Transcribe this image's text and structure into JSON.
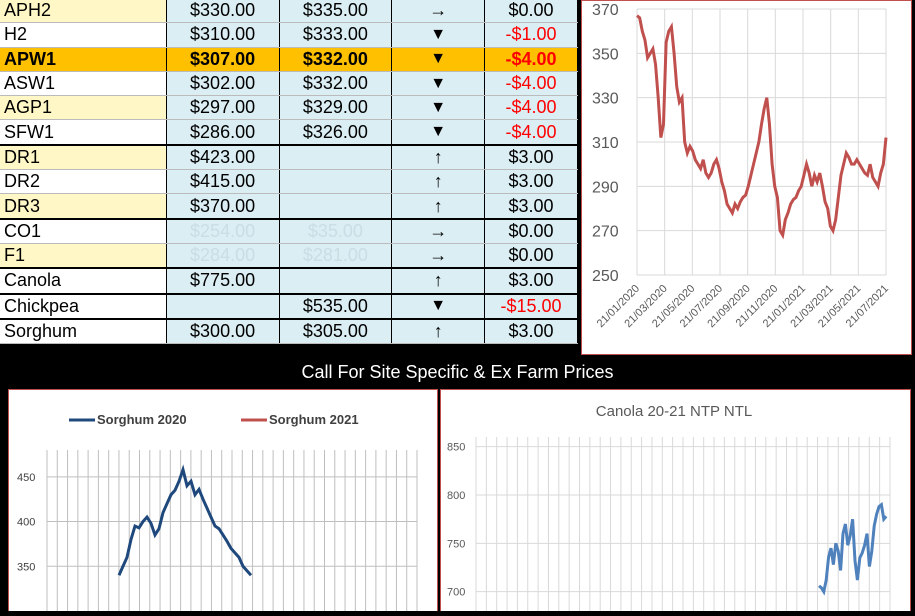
{
  "table": {
    "rows": [
      {
        "name": "APH2",
        "p1": "$330.00",
        "p2": "$335.00",
        "arrow": "→",
        "chg": "$0.00",
        "neg": false,
        "stripe": "even"
      },
      {
        "name": "H2",
        "p1": "$310.00",
        "p2": "$333.00",
        "arrow": "▼",
        "chg": "-$1.00",
        "neg": true,
        "stripe": "odd"
      },
      {
        "name": "APW1",
        "p1": "$307.00",
        "p2": "$332.00",
        "arrow": "▼",
        "chg": "-$4.00",
        "neg": true,
        "stripe": "hl"
      },
      {
        "name": "ASW1",
        "p1": "$302.00",
        "p2": "$332.00",
        "arrow": "▼",
        "chg": "-$4.00",
        "neg": true,
        "stripe": "odd"
      },
      {
        "name": "AGP1",
        "p1": "$297.00",
        "p2": "$329.00",
        "arrow": "▼",
        "chg": "-$4.00",
        "neg": true,
        "stripe": "even"
      },
      {
        "name": "SFW1",
        "p1": "$286.00",
        "p2": "$326.00",
        "arrow": "▼",
        "chg": "-$4.00",
        "neg": true,
        "stripe": "odd"
      },
      {
        "name": "DR1",
        "p1": "$423.00",
        "p2": "",
        "arrow": "↑",
        "chg": "$3.00",
        "neg": false,
        "stripe": "even"
      },
      {
        "name": "DR2",
        "p1": "$415.00",
        "p2": "",
        "arrow": "↑",
        "chg": "$3.00",
        "neg": false,
        "stripe": "odd"
      },
      {
        "name": "DR3",
        "p1": "$370.00",
        "p2": "",
        "arrow": "↑",
        "chg": "$3.00",
        "neg": false,
        "stripe": "even"
      },
      {
        "name": "CO1",
        "p1": "$254.00",
        "p2": "$35.00",
        "arrow": "→",
        "chg": "$0.00",
        "neg": false,
        "stripe": "odd",
        "ghost": true
      },
      {
        "name": "F1",
        "p1": "$284.00",
        "p2": "$281.00",
        "arrow": "→",
        "chg": "$0.00",
        "neg": false,
        "stripe": "even",
        "ghost": true
      },
      {
        "name": "Canola",
        "p1": "$775.00",
        "p2": "",
        "arrow": "↑",
        "chg": "$3.00",
        "neg": false,
        "stripe": "odd"
      },
      {
        "name": "Chickpea",
        "p1": "",
        "p2": "$535.00",
        "arrow": "▼",
        "chg": "-$15.00",
        "neg": true,
        "stripe": "odd"
      },
      {
        "name": "Sorghum",
        "p1": "$300.00",
        "p2": "$305.00",
        "arrow": "↑",
        "chg": "$3.00",
        "neg": false,
        "stripe": "odd"
      }
    ]
  },
  "banner": "Call For Site Specific & Ex Farm Prices",
  "chart_data": [
    {
      "type": "line",
      "yticks": [
        "370",
        "350",
        "330",
        "310",
        "290",
        "270",
        "250"
      ],
      "xticks": [
        "21/01/2020",
        "21/03/2020",
        "21/05/2020",
        "21/07/2020",
        "21/09/2020",
        "21/11/2020",
        "21/01/2021",
        "21/03/2021",
        "21/05/2021",
        "21/07/2021"
      ],
      "ylim": [
        250,
        370
      ],
      "color": "#c0504d",
      "series": [
        {
          "values": [
            367,
            366,
            360,
            356,
            348,
            350,
            352,
            345,
            330,
            312,
            318,
            355,
            360,
            362,
            350,
            335,
            328,
            330,
            310,
            305,
            308,
            306,
            302,
            300,
            298,
            302,
            296,
            294,
            296,
            300,
            302,
            298,
            292,
            288,
            282,
            280,
            278,
            282,
            280,
            283,
            285,
            286,
            290,
            295,
            300,
            305,
            310,
            318,
            325,
            330,
            318,
            300,
            290,
            285,
            270,
            268,
            275,
            278,
            282,
            284,
            285,
            288,
            290,
            295,
            300,
            296,
            290,
            295,
            292,
            296,
            290,
            283,
            280,
            272,
            270,
            275,
            285,
            295,
            300,
            305,
            303,
            300,
            300,
            302,
            300,
            298,
            296,
            295,
            300,
            294,
            292,
            290,
            296,
            300,
            312
          ]
        }
      ]
    },
    {
      "type": "line",
      "yticks": [
        "450",
        "400",
        "350"
      ],
      "ylim": [
        300,
        480
      ],
      "series": [
        {
          "name": "Sorghum 2020",
          "color": "#1f497d",
          "values": [
            340,
            350,
            360,
            380,
            395,
            393,
            400,
            405,
            398,
            385,
            392,
            410,
            420,
            430,
            435,
            445,
            458,
            440,
            445,
            430,
            436,
            425,
            415,
            405,
            395,
            392,
            385,
            378,
            370,
            365,
            360,
            350,
            345,
            340
          ]
        },
        {
          "name": "Sorghum 2021",
          "color": "#c0504d",
          "values": []
        }
      ]
    },
    {
      "type": "line",
      "title": "Canola 20-21 NTP NTL",
      "yticks": [
        "850",
        "800",
        "750",
        "700"
      ],
      "ylim": [
        680,
        860
      ],
      "color": "#4f81bd",
      "series": [
        {
          "values": [
            706,
            704,
            700,
            712,
            736,
            745,
            728,
            750,
            742,
            722,
            760,
            770,
            748,
            758,
            775,
            732,
            712,
            735,
            740,
            748,
            760,
            726,
            742,
            768,
            780,
            788,
            790,
            775,
            778
          ]
        }
      ]
    }
  ]
}
